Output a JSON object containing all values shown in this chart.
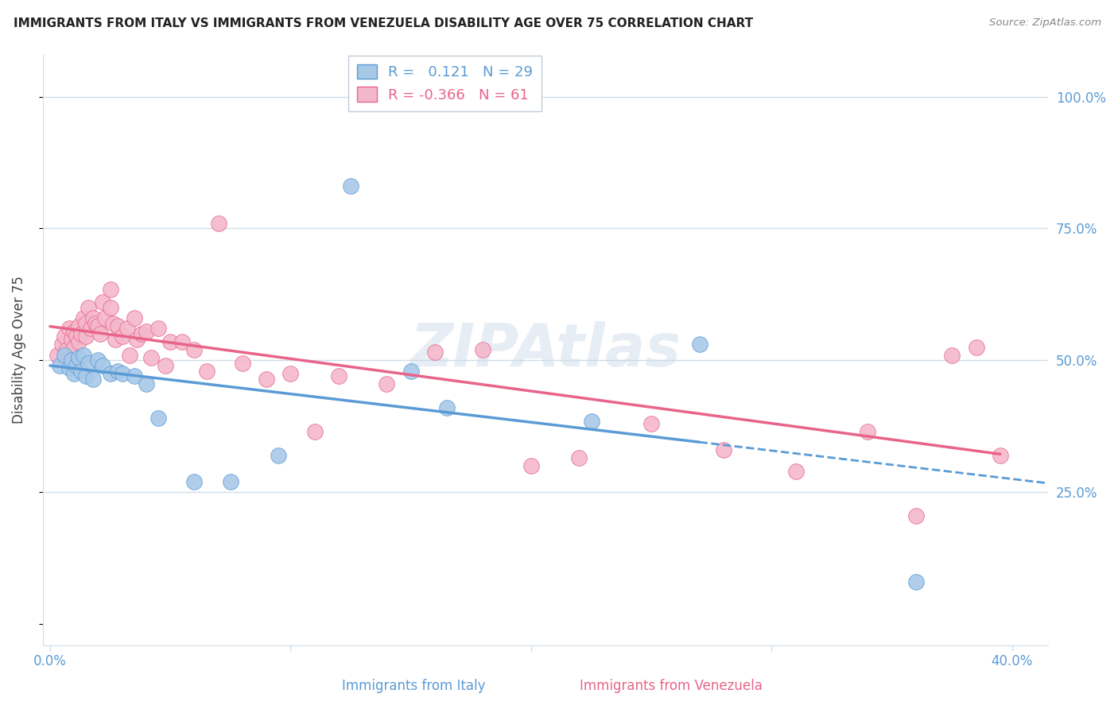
{
  "title": "IMMIGRANTS FROM ITALY VS IMMIGRANTS FROM VENEZUELA DISABILITY AGE OVER 75 CORRELATION CHART",
  "source": "Source: ZipAtlas.com",
  "xlabel_italy": "Immigrants from Italy",
  "xlabel_venezuela": "Immigrants from Venezuela",
  "ylabel": "Disability Age Over 75",
  "R_italy": 0.121,
  "N_italy": 29,
  "R_venezuela": -0.366,
  "N_venezuela": 61,
  "italy_color": "#a8c8e8",
  "italy_line_color": "#5b9bd5",
  "venezuela_color": "#f4b8cc",
  "venezuela_line_color": "#e8648a",
  "watermark": "ZIPAtlas",
  "italy_scatter_x": [
    0.004,
    0.006,
    0.008,
    0.009,
    0.01,
    0.011,
    0.012,
    0.013,
    0.014,
    0.015,
    0.016,
    0.018,
    0.02,
    0.022,
    0.025,
    0.028,
    0.03,
    0.035,
    0.04,
    0.045,
    0.06,
    0.075,
    0.095,
    0.125,
    0.15,
    0.165,
    0.225,
    0.27,
    0.36
  ],
  "italy_scatter_y": [
    0.49,
    0.51,
    0.485,
    0.5,
    0.475,
    0.49,
    0.505,
    0.48,
    0.51,
    0.47,
    0.495,
    0.465,
    0.5,
    0.49,
    0.475,
    0.48,
    0.475,
    0.47,
    0.455,
    0.39,
    0.27,
    0.27,
    0.32,
    0.83,
    0.48,
    0.41,
    0.385,
    0.53,
    0.08
  ],
  "venezuela_scatter_x": [
    0.003,
    0.005,
    0.006,
    0.007,
    0.008,
    0.009,
    0.01,
    0.01,
    0.011,
    0.012,
    0.012,
    0.013,
    0.014,
    0.015,
    0.015,
    0.016,
    0.017,
    0.018,
    0.019,
    0.02,
    0.021,
    0.022,
    0.023,
    0.025,
    0.025,
    0.026,
    0.027,
    0.028,
    0.03,
    0.032,
    0.033,
    0.035,
    0.036,
    0.038,
    0.04,
    0.042,
    0.045,
    0.048,
    0.05,
    0.055,
    0.06,
    0.065,
    0.07,
    0.08,
    0.09,
    0.1,
    0.11,
    0.12,
    0.14,
    0.16,
    0.18,
    0.2,
    0.22,
    0.25,
    0.28,
    0.31,
    0.34,
    0.36,
    0.375,
    0.385,
    0.395
  ],
  "venezuela_scatter_y": [
    0.51,
    0.53,
    0.545,
    0.52,
    0.56,
    0.54,
    0.555,
    0.525,
    0.545,
    0.565,
    0.535,
    0.55,
    0.58,
    0.57,
    0.545,
    0.6,
    0.56,
    0.58,
    0.57,
    0.565,
    0.55,
    0.61,
    0.58,
    0.635,
    0.6,
    0.57,
    0.54,
    0.565,
    0.545,
    0.56,
    0.51,
    0.58,
    0.54,
    0.55,
    0.555,
    0.505,
    0.56,
    0.49,
    0.535,
    0.535,
    0.52,
    0.48,
    0.76,
    0.495,
    0.465,
    0.475,
    0.365,
    0.47,
    0.455,
    0.515,
    0.52,
    0.3,
    0.315,
    0.38,
    0.33,
    0.29,
    0.365,
    0.205,
    0.51,
    0.525,
    0.32
  ]
}
